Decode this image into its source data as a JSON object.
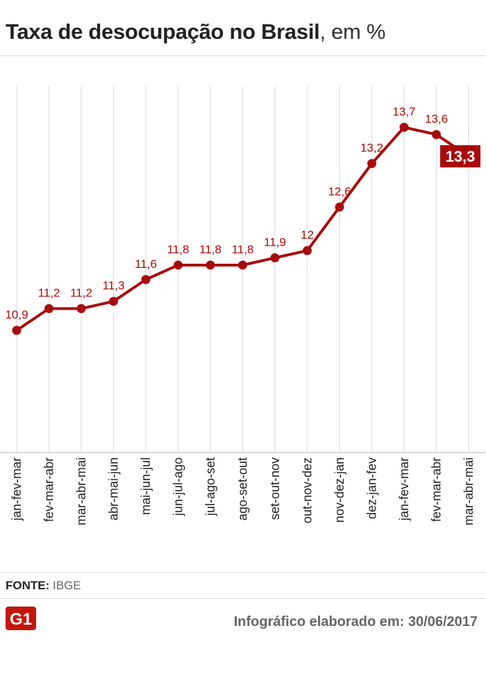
{
  "header": {
    "title_bold": "Taxa de desocupação no Brasil",
    "title_light": ", em %"
  },
  "chart_data": {
    "type": "line",
    "categories": [
      "jan-fev-mar",
      "fev-mar-abr",
      "mar-abr-mai",
      "abr-mai-jun",
      "mai-jun-jul",
      "jun-jul-ago",
      "jul-ago-set",
      "ago-set-out",
      "set-out-nov",
      "out-nov-dez",
      "nov-dez-jan",
      "dez-jan-fev",
      "jan-fev-mar",
      "fev-mar-abr",
      "mar-abr-mai"
    ],
    "values": [
      10.9,
      11.2,
      11.2,
      11.3,
      11.6,
      11.8,
      11.8,
      11.8,
      11.9,
      12,
      12.6,
      13.2,
      13.7,
      13.6,
      13.3
    ],
    "data_labels": [
      "10,9",
      "11,2",
      "11,2",
      "11,3",
      "11,6",
      "11,8",
      "11,8",
      "11,8",
      "11,9",
      "12",
      "12,6",
      "13,2",
      "13,7",
      "13,6",
      "13,3"
    ],
    "highlight_last": true,
    "grid": "vertical",
    "colors": {
      "line": "#a80b0b",
      "label": "#a80b0b",
      "highlight_bg": "#a80b0b",
      "highlight_text": "#ffffff",
      "grid": "#e3e3e3"
    }
  },
  "footer": {
    "source_label": "FONTE:",
    "source_value": "IBGE",
    "logo_text": "G1",
    "credit": "Infográfico elaborado em: 30/06/2017"
  }
}
